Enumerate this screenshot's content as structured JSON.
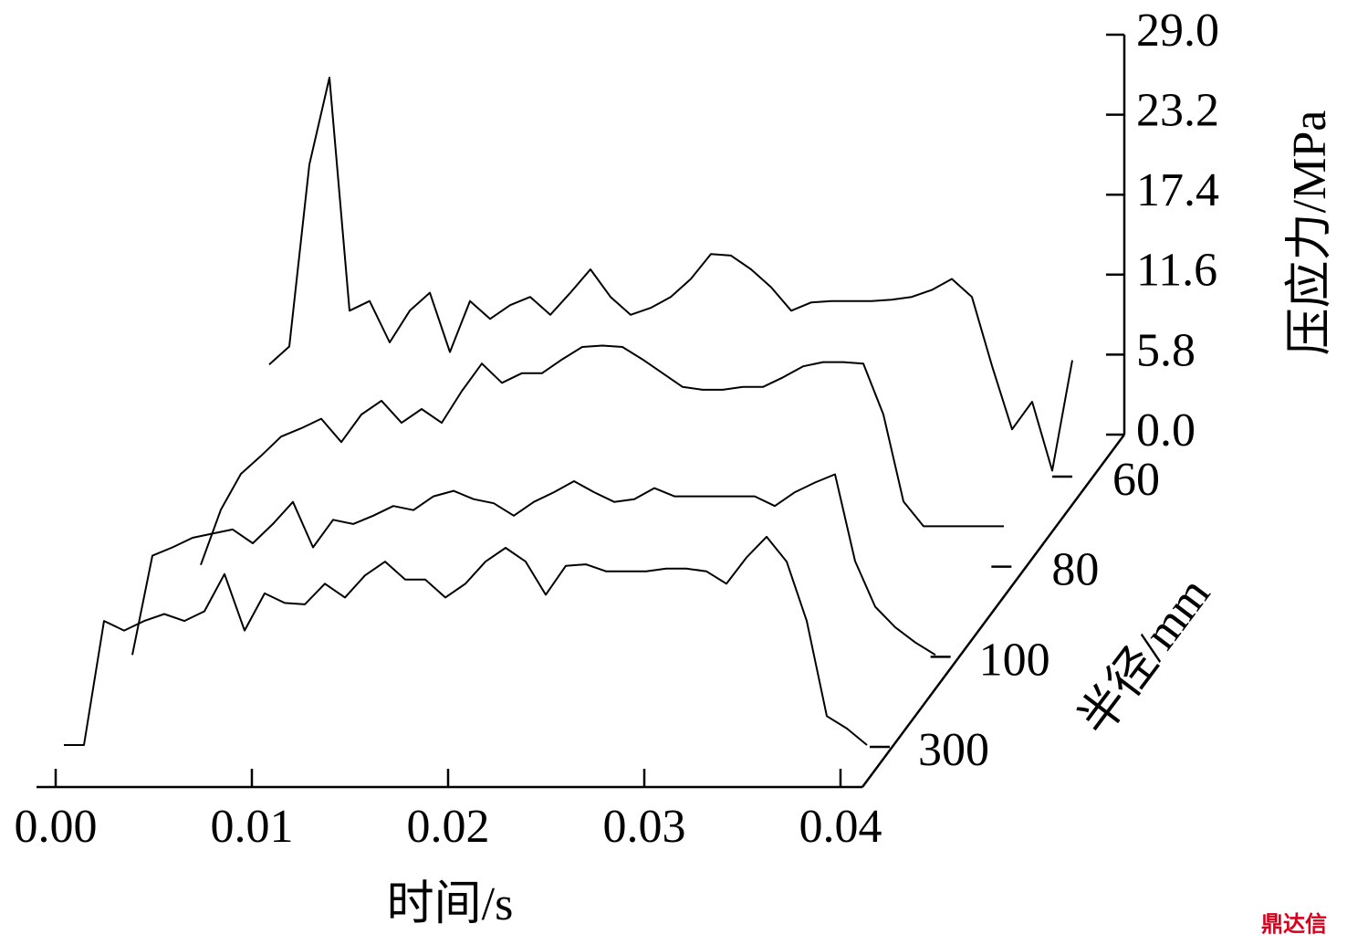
{
  "chart_data": {
    "type": "waterfall",
    "xlabel": "时间/s",
    "ylabel": "压应力/MPa",
    "zlabel": "半径/mm",
    "watermark": "鼎达信",
    "xlim": [
      0,
      0.04
    ],
    "xticks": [
      {
        "value": 0,
        "label": "0.00"
      },
      {
        "value": 0.01,
        "label": "0.01"
      },
      {
        "value": 0.02,
        "label": "0.02"
      },
      {
        "value": 0.03,
        "label": "0.03"
      },
      {
        "value": 0.04,
        "label": "0.04"
      }
    ],
    "ylim": [
      0,
      29
    ],
    "yticks": [
      {
        "value": 0,
        "label": "0.0"
      },
      5.8,
      11.6,
      17.4,
      23.2,
      {
        "value": 29,
        "label": "29.0"
      }
    ],
    "x": [
      0,
      0.001,
      0.002,
      0.003,
      0.004,
      0.005,
      0.006,
      0.007,
      0.008,
      0.009,
      0.01,
      0.011,
      0.012,
      0.013,
      0.014,
      0.015,
      0.016,
      0.017,
      0.018,
      0.019,
      0.02,
      0.021,
      0.022,
      0.023,
      0.024,
      0.025,
      0.026,
      0.027,
      0.028,
      0.029,
      0.03,
      0.031,
      0.032,
      0.033,
      0.034,
      0.035,
      0.036,
      0.037,
      0.038,
      0.039,
      0.04
    ],
    "series": [
      {
        "name": "300",
        "color": "#000000",
        "values": [
          0,
          0,
          9,
          8.3,
          9,
          9.5,
          9,
          9.7,
          12.4,
          8.3,
          11,
          10.3,
          10.2,
          11.7,
          10.7,
          12.3,
          13.3,
          12,
          12,
          10.7,
          11.7,
          13.3,
          14.3,
          13.3,
          10.9,
          13,
          13.1,
          12.6,
          12.6,
          12.6,
          12.8,
          12.8,
          12.6,
          11.7,
          13.6,
          15.1,
          13.3,
          9,
          2.1,
          1.2,
          0
        ]
      },
      {
        "name": "100",
        "color": "#000000",
        "values": [
          0,
          7.2,
          7.8,
          8.5,
          8.8,
          9.1,
          8.1,
          9.5,
          11.1,
          7.8,
          9.8,
          9.5,
          10.1,
          10.8,
          10.5,
          11.5,
          11.9,
          11.3,
          11,
          10.1,
          11.1,
          11.8,
          12.6,
          11.8,
          11.1,
          11.3,
          12.1,
          11.5,
          11.5,
          11.5,
          11.5,
          11.5,
          10.8,
          11.8,
          12.5,
          13.1,
          6.8,
          3.5,
          2,
          0.9,
          0
        ]
      },
      {
        "name": "80",
        "color": "#000000",
        "values": [
          0,
          4,
          6.6,
          7.9,
          9.3,
          9.9,
          10.6,
          8.9,
          10.9,
          11.9,
          10.3,
          11.3,
          10.3,
          12.6,
          14.6,
          13.2,
          13.9,
          13.9,
          14.9,
          15.8,
          15.9,
          15.8,
          14.9,
          13.9,
          12.9,
          12.7,
          12.7,
          12.9,
          12.9,
          13.6,
          14.4,
          14.7,
          14.7,
          14.6,
          10.9,
          4.6,
          2.8,
          2.8,
          2.8,
          2.8,
          2.8
        ]
      },
      {
        "name": "60",
        "color": "#000000",
        "values": [
          8,
          9.3,
          22.5,
          28.8,
          11.9,
          12.6,
          9.6,
          11.9,
          13.2,
          8.9,
          12.6,
          11.3,
          12.3,
          12.9,
          11.6,
          13.2,
          14.9,
          12.9,
          11.6,
          12.1,
          12.9,
          14.2,
          16,
          15.9,
          14.9,
          13.6,
          11.9,
          12.5,
          12.6,
          12.6,
          12.6,
          12.7,
          12.9,
          13.4,
          14.2,
          12.9,
          7.9,
          3.3,
          5.3,
          0.3,
          8.3
        ]
      }
    ]
  }
}
